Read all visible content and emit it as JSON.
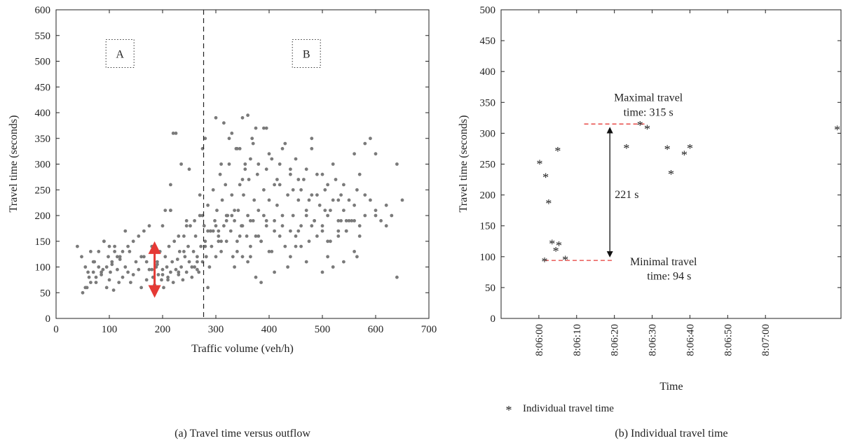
{
  "chart_data": [
    {
      "type": "scatter",
      "caption": "(a)  Travel time versus outflow",
      "xlabel": "Traffic volume (veh/h)",
      "ylabel": "Travel time (seconds)",
      "xlim": [
        0,
        700
      ],
      "ylim": [
        0,
        600
      ],
      "xticks": [
        "0",
        "100",
        "200",
        "300",
        "400",
        "500",
        "600",
        "700"
      ],
      "yticks": [
        "0",
        "50",
        "100",
        "150",
        "200",
        "250",
        "300",
        "350",
        "400",
        "450",
        "500",
        "550",
        "600"
      ],
      "grid": false,
      "marker_color": "#7a7a7a",
      "divider_x": 277,
      "region_labels": [
        {
          "text": "A",
          "x": 120,
          "y": 515
        },
        {
          "text": "B",
          "x": 470,
          "y": 515
        }
      ],
      "range_arrow": {
        "x": 185,
        "y_low": 45,
        "y_high": 145,
        "color": "#e53935"
      },
      "series": [
        {
          "x": [
            40,
            48,
            55,
            58,
            62,
            65,
            70,
            72,
            75,
            80,
            85,
            88,
            90,
            95,
            98,
            100,
            102,
            105,
            108,
            110,
            115,
            118,
            120,
            125,
            130,
            135,
            138,
            140,
            145,
            150,
            155,
            160,
            165,
            170,
            175,
            180,
            182,
            185,
            188,
            190,
            192,
            195,
            198,
            200,
            202,
            205,
            208,
            210,
            212,
            215,
            218,
            220,
            222,
            225,
            228,
            230,
            232,
            235,
            238,
            240,
            242,
            245,
            248,
            250,
            252,
            255,
            258,
            260,
            262,
            265,
            268,
            270,
            272,
            275,
            278,
            280,
            282,
            285,
            288,
            290,
            292,
            295,
            298,
            300,
            302,
            305,
            308,
            310,
            312,
            315,
            318,
            320,
            322,
            325,
            328,
            330,
            332,
            335,
            338,
            340,
            342,
            345,
            348,
            350,
            352,
            355,
            358,
            360,
            362,
            365,
            368,
            370,
            372,
            375,
            378,
            380,
            385,
            390,
            395,
            400,
            405,
            410,
            415,
            420,
            425,
            430,
            435,
            440,
            445,
            450,
            455,
            460,
            465,
            470,
            475,
            480,
            485,
            490,
            495,
            500,
            505,
            510,
            515,
            520,
            525,
            530,
            535,
            540,
            545,
            550,
            555,
            560,
            565,
            570,
            580,
            590,
            600,
            610,
            620,
            630,
            640,
            650,
            270,
            275,
            280,
            300,
            310,
            330,
            340,
            350,
            370,
            380,
            390,
            400,
            410,
            420,
            430,
            440,
            450,
            460,
            470,
            480,
            490,
            500,
            510,
            520,
            530,
            540,
            560,
            570,
            580,
            330,
            350,
            360,
            375,
            395,
            425,
            455,
            480,
            250,
            265,
            280,
            295,
            320,
            345,
            365,
            385,
            405,
            435,
            460,
            490,
            510,
            540,
            560,
            245,
            215,
            230,
            355,
            385,
            300,
            315,
            325,
            345,
            365,
            395,
            415,
            445,
            475,
            505,
            535,
            130,
            215,
            225,
            235,
            265,
            285,
            305,
            335,
            375,
            400,
            410,
            440,
            470,
            500,
            520,
            545,
            565,
            580,
            590,
            600,
            640,
            205,
            220,
            240,
            255,
            285,
            310,
            340,
            360,
            390,
            420,
            450,
            480,
            510,
            530,
            550,
            570,
            600,
            620,
            200,
            230,
            260,
            290,
            320,
            350,
            380,
            410,
            440,
            470,
            500,
            530,
            560,
            215,
            245,
            275,
            305,
            335,
            365,
            395,
            425,
            455,
            485,
            515,
            545,
            160,
            170,
            180,
            190,
            200,
            210,
            100,
            110,
            120,
            90,
            80,
            70,
            60,
            50,
            55,
            65,
            75,
            85,
            95,
            105,
            115,
            125,
            135,
            145,
            155,
            165,
            175
          ],
          "y": [
            140,
            120,
            100,
            60,
            80,
            130,
            90,
            110,
            70,
            100,
            85,
            95,
            150,
            60,
            120,
            75,
            90,
            105,
            55,
            140,
            95,
            70,
            115,
            80,
            100,
            90,
            130,
            70,
            85,
            110,
            95,
            60,
            120,
            75,
            95,
            140,
            80,
            65,
            100,
            110,
            85,
            130,
            75,
            95,
            60,
            120,
            100,
            80,
            140,
            90,
            110,
            70,
            150,
            95,
            115,
            85,
            130,
            100,
            75,
            160,
            120,
            90,
            140,
            110,
            180,
            80,
            130,
            100,
            160,
            120,
            90,
            200,
            140,
            110,
            180,
            150,
            120,
            220,
            100,
            170,
            140,
            250,
            190,
            120,
            210,
            160,
            280,
            130,
            230,
            180,
            260,
            150,
            200,
            300,
            170,
            240,
            120,
            190,
            330,
            150,
            210,
            260,
            180,
            120,
            240,
            300,
            160,
            200,
            270,
            140,
            350,
            190,
            230,
            160,
            280,
            210,
            150,
            250,
            190,
            230,
            310,
            170,
            220,
            260,
            180,
            140,
            240,
            290,
            200,
            160,
            230,
            180,
            270,
            210,
            150,
            240,
            190,
            280,
            220,
            170,
            250,
            200,
            150,
            230,
            270,
            190,
            240,
            210,
            170,
            230,
            190,
            220,
            250,
            180,
            200,
            230,
            210,
            190,
            220,
            200,
            80,
            230,
            240,
            330,
            350,
            390,
            300,
            360,
            330,
            270,
            340,
            300,
            370,
            320,
            260,
            300,
            340,
            280,
            310,
            250,
            290,
            330,
            240,
            280,
            260,
            300,
            230,
            260,
            320,
            280,
            240,
            200,
            390,
            395,
            370,
            370,
            330,
            270,
            350,
            290,
            110,
            140,
            170,
            190,
            160,
            120,
            150,
            130,
            100,
            140,
            160,
            120,
            110,
            130,
            180,
            260,
            90,
            290,
            70,
            180,
            380,
            350,
            330,
            310,
            290,
            270,
            250,
            230,
            210,
            190,
            170,
            210,
            360,
            300,
            95,
            60,
            150,
            100,
            80,
            130,
            90,
            120,
            110,
            90,
            100,
            170,
            120,
            340,
            350,
            320,
            300,
            210,
            360,
            130,
            100,
            170,
            150,
            130,
            110,
            200,
            160,
            140,
            180,
            150,
            170,
            190,
            160,
            200,
            180,
            180,
            160,
            190,
            170,
            200,
            180,
            160,
            190,
            170,
            200,
            180,
            160,
            190,
            210,
            190,
            200,
            170,
            210,
            190,
            180,
            200,
            170,
            190,
            210,
            190,
            120,
            110,
            95,
            105,
            85,
            75,
            140,
            130,
            120,
            150,
            130,
            110,
            90,
            50,
            60,
            70,
            80,
            90,
            100,
            110,
            120,
            130,
            140,
            150,
            160,
            170,
            180
          ]
        }
      ]
    },
    {
      "type": "scatter",
      "caption": "(b)  Individual travel time",
      "xlabel": "Time",
      "ylabel": "Travel time (seconds)",
      "xlim": [
        0,
        90
      ],
      "ylim": [
        0,
        500
      ],
      "xticks": [
        {
          "label": "8:06:00",
          "at": 10
        },
        {
          "label": "8:06:10",
          "at": 20
        },
        {
          "label": "8:06:20",
          "at": 30
        },
        {
          "label": "8:06:30",
          "at": 40
        },
        {
          "label": "8:06:40",
          "at": 50
        },
        {
          "label": "8:06:50",
          "at": 60
        },
        {
          "label": "8:07:00",
          "at": 70
        }
      ],
      "yticks": [
        "0",
        "50",
        "100",
        "150",
        "200",
        "250",
        "300",
        "350",
        "400",
        "450",
        "500"
      ],
      "grid": false,
      "legend": {
        "position": "bottom-left",
        "entries": [
          "Individual travel time"
        ]
      },
      "series": [
        {
          "name": "Individual travel time",
          "x": [
            10.2,
            11.8,
            12.6,
            11.5,
            13.5,
            14.5,
            15.3,
            15.0,
            17.0,
            33.2,
            36.8,
            38.7,
            44.0,
            45.0,
            48.5,
            50.0,
            89.0
          ],
          "y": [
            252,
            231,
            188,
            94,
            123,
            111,
            120,
            273,
            97,
            278,
            315,
            309,
            276,
            236,
            267,
            278,
            308
          ]
        }
      ],
      "annotations": {
        "max_label_1": "Maximal travel",
        "max_label_2": "time: 315 s",
        "min_label_1": "Minimal travel",
        "min_label_2": "time: 94 s",
        "diff_label": "221 s",
        "max_value": 315,
        "min_value": 94,
        "dash_color": "#e53935"
      }
    }
  ]
}
